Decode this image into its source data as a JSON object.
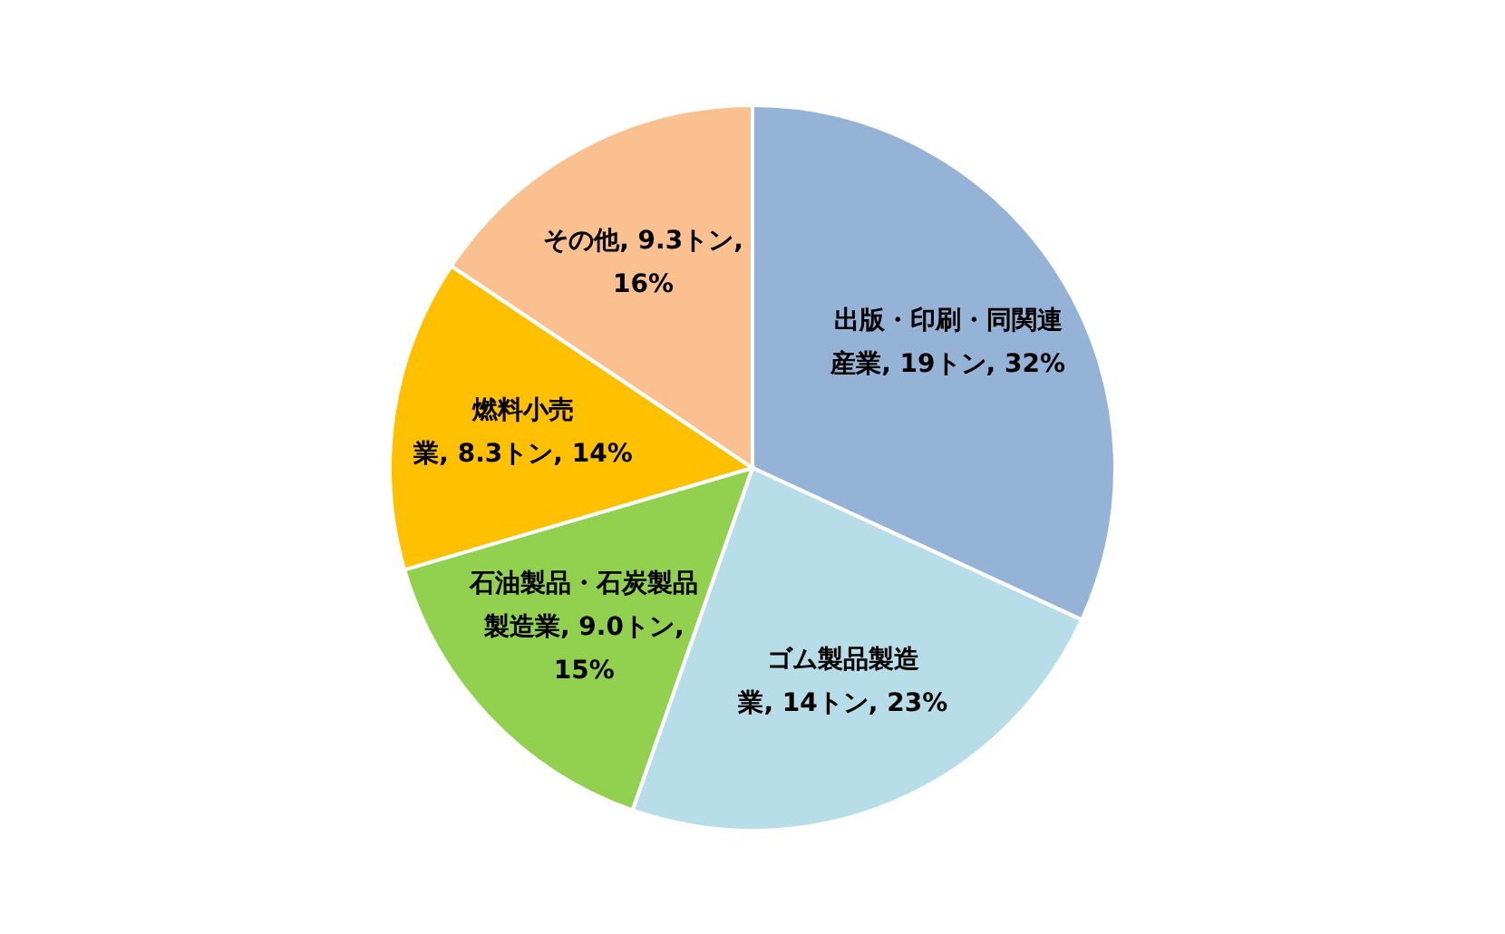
{
  "chart_data": {
    "type": "pie",
    "categories": [
      "出版・印刷・同関連産業",
      "ゴム製品製造業",
      "石油製品・石炭製品製造業",
      "燃料小売業",
      "その他"
    ],
    "values": [
      19,
      14,
      9.0,
      8.3,
      9.3
    ],
    "value_labels": [
      "19トン, 32%",
      "14トン, 23%",
      "9.0トン, 15%",
      "8.3トン, 14%",
      "9.3トン, 16%"
    ],
    "colors": [
      "#95b3d7",
      "#b7dee8",
      "#92d050",
      "#ffc000",
      "#fac090"
    ]
  }
}
